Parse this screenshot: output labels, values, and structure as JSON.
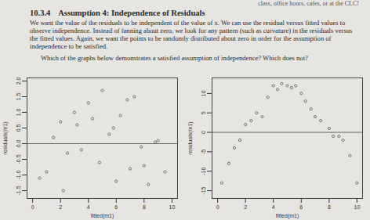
{
  "header": {
    "top_line": "class, office hours, cafes, or at the CLC!",
    "section": "10.3.4",
    "title": "Assumption 4: Independence of Residuals"
  },
  "paragraph": "We want the value of the residuals to be independent of the value of x. We can use the residual versus fitted values to observe independence. Instead of fanning about zero, we look for any pattern (such as curvature) in the residuals versus the fitted values. Again, we want the points to be randomly distributed about zero in order for the assumption of independence to be satisfied.",
  "question": "Which of the graphs below demonstrates a satisfied assumption of independence? Which does not?",
  "chart_data": [
    {
      "type": "scatter",
      "xlabel": "fitted(m1)",
      "ylabel": "residuals(m1)",
      "x": [
        0.5,
        1,
        1.5,
        2,
        2.2,
        2.5,
        3,
        3.2,
        3.5,
        4,
        4.3,
        4.8,
        5,
        5.5,
        5.8,
        6,
        6.3,
        6.8,
        7,
        7.3,
        7.8,
        8,
        8.3,
        8.8,
        9,
        9.5
      ],
      "values": [
        -1.1,
        -0.9,
        0.2,
        0.7,
        -1.5,
        -0.3,
        1.0,
        0.6,
        -0.2,
        1.3,
        0.8,
        -0.6,
        1.7,
        0.3,
        0.5,
        -1.2,
        0.9,
        1.4,
        -0.8,
        1.5,
        -0.1,
        -0.7,
        -1.3,
        0.05,
        0.1,
        -0.9
      ],
      "xlim": [
        -0.4,
        10.4
      ],
      "ylim": [
        -1.75,
        2.1
      ],
      "xticks": [
        0,
        2,
        4,
        6,
        8,
        10
      ],
      "yticks": [
        -1.5,
        {
          "value": -1,
          "label": "-1.0"
        },
        -0.5,
        {
          "value": 0,
          "label": "0.0"
        },
        0.5,
        {
          "value": 1,
          "label": "1.0"
        },
        1.5,
        {
          "value": 2,
          "label": "2.0"
        }
      ],
      "hline": 0,
      "grid": false,
      "color": "#666666",
      "marker": "circle"
    },
    {
      "type": "scatter",
      "xlabel": "fitted(m1)",
      "ylabel": "residuals(m1)",
      "x": [
        0.3,
        0.8,
        1.2,
        1.6,
        2,
        2.4,
        2.8,
        3.2,
        3.6,
        4,
        4.3,
        4.6,
        5,
        5.3,
        5.6,
        6,
        6.3,
        6.7,
        7,
        7.4,
        8,
        8.3,
        8.7,
        9,
        9.5,
        10
      ],
      "values": [
        -13,
        -8,
        -4,
        -2,
        2,
        3,
        5,
        4,
        9,
        12,
        11,
        12.5,
        12,
        11.5,
        12,
        10,
        8,
        6,
        4,
        3,
        1,
        -1,
        -1,
        -2,
        -6,
        -13
      ],
      "xlim": [
        -0.4,
        10.4
      ],
      "ylim": [
        -17,
        14
      ],
      "xticks": [
        0,
        2,
        4,
        6,
        8,
        10
      ],
      "yticks": [
        -15,
        -10,
        -5,
        0,
        5,
        10
      ],
      "hline": 0,
      "grid": false,
      "color": "#666666",
      "marker": "circle"
    }
  ]
}
